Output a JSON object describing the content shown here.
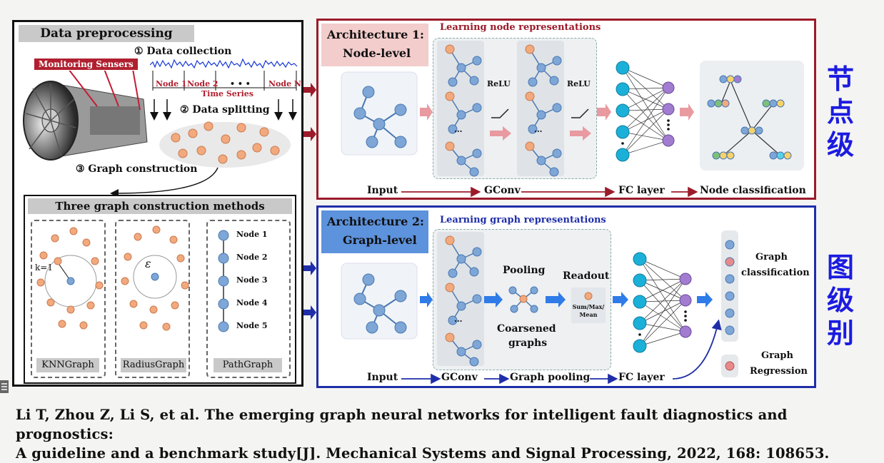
{
  "left": {
    "title": "Data preprocessing",
    "sensors_label": "Monitoring Sensers",
    "step1": "① Data collection",
    "step2": "② Data splitting",
    "step3": "③ Graph construction",
    "node_segments": [
      "Node 1",
      "Node 2",
      "• • •",
      "Node N"
    ],
    "time_series": "Time Series",
    "methods_title": "Three graph construction methods",
    "knn_k": "k=1",
    "radius_eps": "ε",
    "path_nodes": [
      "Node 1",
      "Node 2",
      "Node 3",
      "Node 4",
      "Node 5"
    ],
    "methods": [
      "KNNGraph",
      "RadiusGraph",
      "PathGraph"
    ]
  },
  "arch1": {
    "title_line1": "Architecture 1:",
    "title_line2": "Node-level",
    "section": "Learning node representations",
    "relu": "ReLU",
    "dots": "...",
    "flow": [
      "Input",
      "GConv",
      "FC layer",
      "Node classification"
    ],
    "side_label": [
      "节",
      "点",
      "级"
    ]
  },
  "arch2": {
    "title_line1": "Architecture 2:",
    "title_line2": "Graph-level",
    "section": "Learning graph representations",
    "pooling": "Pooling",
    "readout": "Readout",
    "readout_box": [
      "Sum/Max/",
      "Mean"
    ],
    "coarsened": [
      "Coarsened",
      "graphs"
    ],
    "graph_classification": [
      "Graph",
      "classification"
    ],
    "graph_regression": [
      "Graph",
      "Regression"
    ],
    "flow": [
      "Input",
      "GConv",
      "Graph pooling",
      "FC layer"
    ],
    "side_label": [
      "图",
      "级",
      "别"
    ]
  },
  "citation": {
    "line1": "Li T, Zhou Z, Li S, et al. The emerging graph neural networks for intelligent fault diagnostics and prognostics:",
    "line2": "A guideline and a benchmark study[J]. Mechanical Systems and Signal Processing, 2022, 168: 108653."
  },
  "colors": {
    "arch1_border": "#9b1b2a",
    "arch2_border": "#1f2ea8",
    "node_blue": "#7ea6d6",
    "node_orange": "#f2a97e",
    "fc_cyan": "#1bb0d8",
    "fc_purple": "#a27cd0",
    "side_label": "#1b1be0"
  }
}
